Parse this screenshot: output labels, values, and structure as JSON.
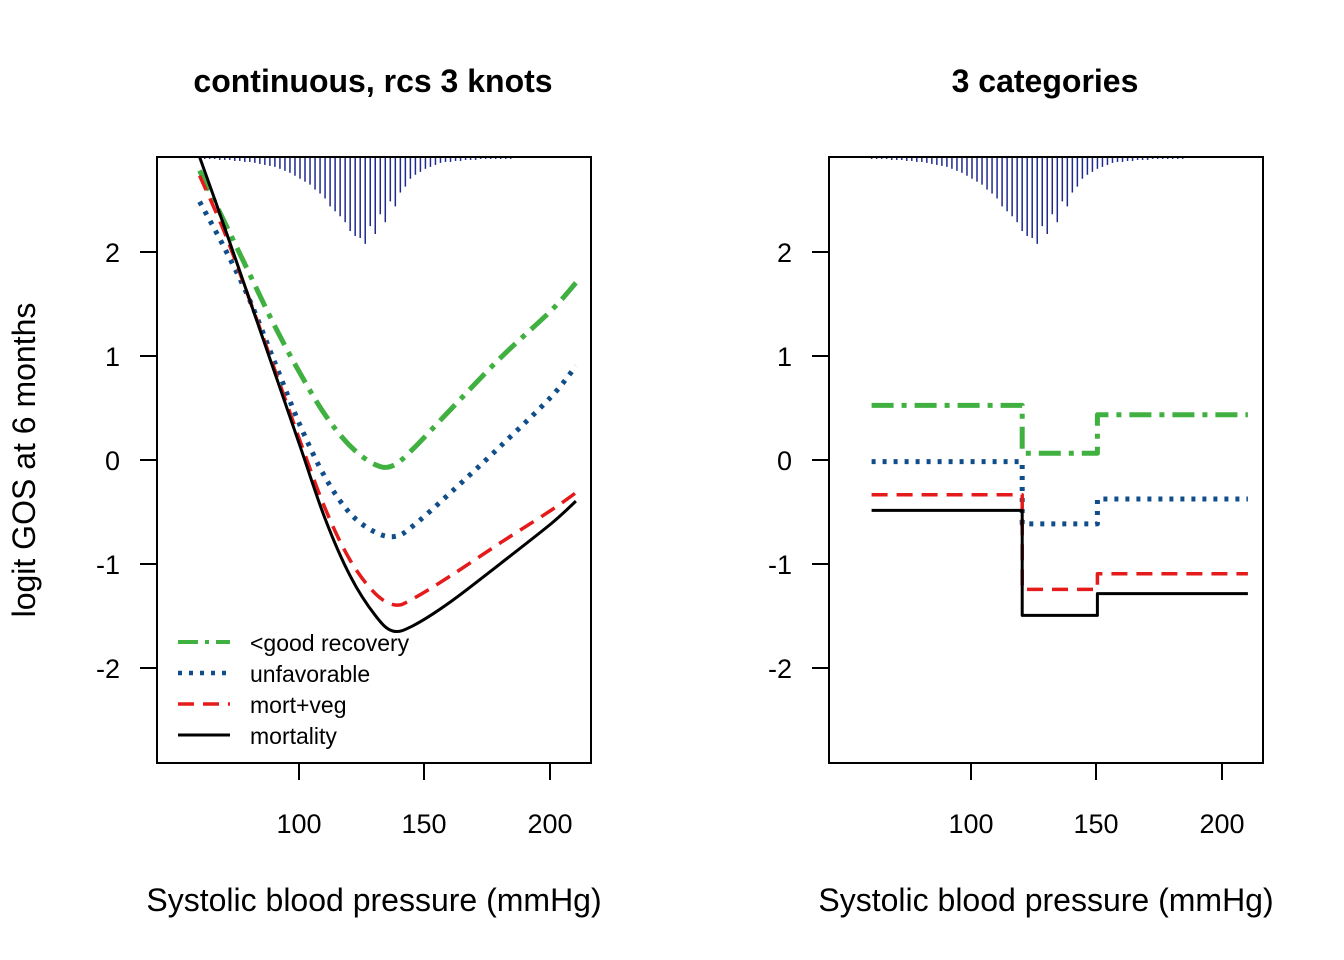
{
  "chart_data": [
    {
      "type": "line",
      "title": "continuous, rcs 3 knots",
      "xlabel": "Systolic blood pressure (mmHg)",
      "ylabel": "logit GOS at 6 months",
      "xlim": [
        43,
        216
      ],
      "ylim": [
        -2.9,
        2.93
      ],
      "xticks": [
        "100",
        "150",
        "200"
      ],
      "yticks": [
        "-2",
        "-1",
        "0",
        "1",
        "2"
      ],
      "grid": false,
      "legend_position": "bottom-left",
      "series": [
        {
          "name": "<good recovery",
          "color": "#40b040",
          "dash": "22,8,5,8",
          "width": 5,
          "x": [
            60,
            70,
            80,
            90,
            100,
            110,
            120,
            130,
            137,
            145,
            160,
            180,
            200,
            210
          ],
          "y": [
            2.8,
            2.3,
            1.8,
            1.3,
            0.85,
            0.45,
            0.15,
            -0.03,
            -0.04,
            0.12,
            0.5,
            1.0,
            1.45,
            1.72
          ]
        },
        {
          "name": "unfavorable",
          "color": "#104e8b",
          "dash": "4,7",
          "width": 5,
          "x": [
            60,
            70,
            80,
            90,
            100,
            110,
            120,
            130,
            138,
            145,
            160,
            180,
            200,
            210
          ],
          "y": [
            2.5,
            2.05,
            1.55,
            0.95,
            0.35,
            -0.15,
            -0.5,
            -0.68,
            -0.72,
            -0.62,
            -0.3,
            0.15,
            0.62,
            0.92
          ]
        },
        {
          "name": "mort+veg",
          "color": "#e51a1a",
          "dash": "16,9",
          "width": 3.5,
          "x": [
            60,
            70,
            80,
            90,
            100,
            110,
            120,
            130,
            138,
            145,
            160,
            180,
            200,
            210
          ],
          "y": [
            2.75,
            2.2,
            1.55,
            0.88,
            0.2,
            -0.45,
            -0.95,
            -1.27,
            -1.38,
            -1.32,
            -1.1,
            -0.78,
            -0.47,
            -0.3
          ]
        },
        {
          "name": "mortality",
          "color": "#000000",
          "dash": "",
          "width": 3,
          "x": [
            60,
            70,
            80,
            90,
            100,
            110,
            120,
            130,
            137,
            145,
            160,
            180,
            200,
            210
          ],
          "y": [
            2.93,
            2.25,
            1.55,
            0.85,
            0.15,
            -0.55,
            -1.1,
            -1.48,
            -1.63,
            -1.58,
            -1.35,
            -0.98,
            -0.6,
            -0.38
          ]
        }
      ]
    },
    {
      "type": "line",
      "title": "3 categories",
      "xlabel": "Systolic blood pressure (mmHg)",
      "ylabel": "",
      "xlim": [
        43,
        216
      ],
      "ylim": [
        -2.9,
        2.93
      ],
      "xticks": [
        "100",
        "150",
        "200"
      ],
      "yticks": [
        "-2",
        "-1",
        "0",
        "1",
        "2"
      ],
      "grid": false,
      "step": true,
      "series": [
        {
          "name": "<good recovery",
          "color": "#40b040",
          "dash": "22,8,5,8",
          "width": 5,
          "x": [
            60,
            120,
            150,
            210
          ],
          "y": [
            0.54,
            0.08,
            0.45,
            0.45
          ]
        },
        {
          "name": "unfavorable",
          "color": "#104e8b",
          "dash": "4,7",
          "width": 5,
          "x": [
            60,
            120,
            150,
            210
          ],
          "y": [
            0.0,
            -0.6,
            -0.36,
            -0.36
          ]
        },
        {
          "name": "mort+veg",
          "color": "#e51a1a",
          "dash": "16,9",
          "width": 3.5,
          "x": [
            60,
            120,
            150,
            210
          ],
          "y": [
            -0.32,
            -1.23,
            -1.08,
            -1.08
          ]
        },
        {
          "name": "mortality",
          "color": "#000000",
          "dash": "",
          "width": 3,
          "x": [
            60,
            120,
            150,
            210
          ],
          "y": [
            -0.47,
            -1.48,
            -1.27,
            -1.27
          ]
        }
      ]
    }
  ],
  "rug": {
    "color": "#1f2a8f",
    "x_start": 60,
    "x_step": 2,
    "heights": [
      0.02,
      0.02,
      0.02,
      0.02,
      0.03,
      0.03,
      0.03,
      0.04,
      0.04,
      0.05,
      0.05,
      0.06,
      0.07,
      0.08,
      0.09,
      0.1,
      0.12,
      0.14,
      0.16,
      0.19,
      0.22,
      0.25,
      0.28,
      0.33,
      0.37,
      0.42,
      0.5,
      0.55,
      0.6,
      0.66,
      0.75,
      0.8,
      0.82,
      0.88,
      0.7,
      0.78,
      0.58,
      0.66,
      0.45,
      0.5,
      0.36,
      0.3,
      0.22,
      0.18,
      0.15,
      0.12,
      0.1,
      0.08,
      0.06,
      0.05,
      0.05,
      0.04,
      0.04,
      0.03,
      0.03,
      0.03,
      0.02,
      0.02,
      0.02,
      0.02,
      0.02,
      0.02,
      0.02,
      0.01,
      0.01,
      0.01,
      0.01,
      0.01,
      0.01,
      0.01,
      0.01,
      0.01,
      0.01,
      0.01,
      0.01,
      0.01
    ]
  }
}
